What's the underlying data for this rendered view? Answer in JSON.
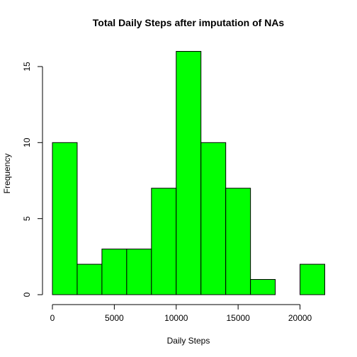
{
  "chart_data": {
    "type": "bar",
    "title": "Total Daily Steps after imputation of NAs",
    "xlabel": "Daily Steps",
    "ylabel": "Frequency",
    "bin_edges": [
      0,
      2000,
      4000,
      6000,
      8000,
      10000,
      12000,
      14000,
      16000,
      18000,
      20000,
      22000
    ],
    "values": [
      10,
      2,
      3,
      3,
      7,
      16,
      10,
      7,
      1,
      0,
      2
    ],
    "xlim": [
      0,
      22000
    ],
    "ylim": [
      0,
      16
    ],
    "x_ticks": [
      0,
      5000,
      10000,
      15000,
      20000
    ],
    "y_ticks": [
      0,
      5,
      10,
      15
    ],
    "bar_color": "#00FF00",
    "grid": false
  }
}
